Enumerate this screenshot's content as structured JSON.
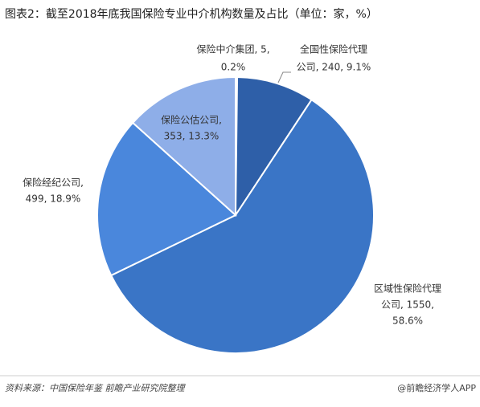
{
  "chart_data": {
    "type": "pie",
    "title": "图表2：截至2018年底我国保险专业中介机构数量及占比（单位：家，%）",
    "values": [
      5,
      240,
      1550,
      499,
      353
    ],
    "value_labels": [
      [
        "保险中介集团, 5,",
        "0.2%"
      ],
      [
        "全国性保险代理",
        "公司, 240, 9.1%"
      ],
      [
        "区域性保险代理",
        "公司, 1550,",
        "58.6%"
      ],
      [
        "保险经纪公司,",
        "499, 18.9%"
      ],
      [
        "保险公估公司,",
        "353, 13.3%"
      ]
    ],
    "colors": [
      "#2a57a0",
      "#2e5fa8",
      "#3a75c6",
      "#4a87dc",
      "#8eaee8"
    ],
    "source": "资料来源：中国保险年鉴 前瞻产业研究院整理",
    "credit": "@前瞻经济学人APP"
  }
}
